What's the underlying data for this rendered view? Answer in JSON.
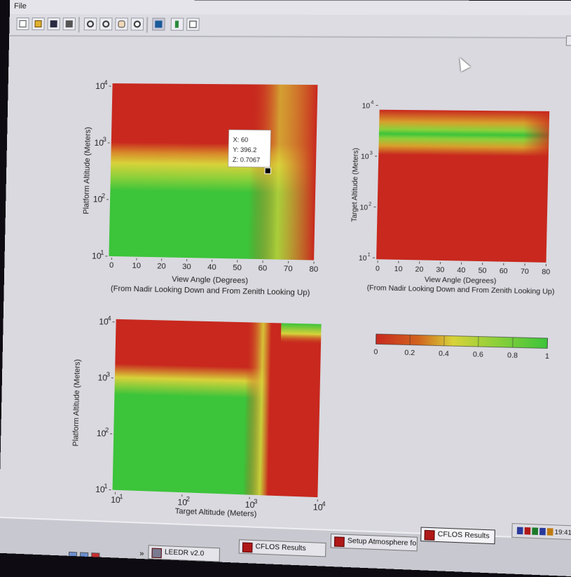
{
  "window": {
    "menu_file": "File"
  },
  "toolbar": {
    "icons": [
      "new-file-icon",
      "open-folder-icon",
      "save-icon",
      "print-icon",
      "zoom-in-icon",
      "zoom-out-icon",
      "pan-hand-icon",
      "reset-view-icon",
      "data-cursor-icon",
      "colorbar-icon",
      "legend-icon"
    ]
  },
  "colors": {
    "red": "#c8281e",
    "yellow": "#d8d23a",
    "green": "#3cc43a",
    "text": "#222222",
    "bg": "#d9d9df"
  },
  "chart_data": [
    {
      "type": "heatmap",
      "id": "plot1",
      "xlabel": "View Angle (Degrees)",
      "xlabel2": "(From Nadir Looking Down and From Zenith Looking Up)",
      "ylabel": "Platform Altitude (Meters)",
      "x_ticks": [
        "0",
        "10",
        "20",
        "30",
        "40",
        "50",
        "60",
        "70",
        "80"
      ],
      "xlim": [
        0,
        80
      ],
      "y_scale": "log",
      "ylim": [
        10,
        10000
      ],
      "y_ticks_base": "10",
      "y_ticks_exp": [
        "1",
        "2",
        "3",
        "4"
      ],
      "description_values": {
        "transition_altitude_m": 1000,
        "rolloff_start_deg": 55
      },
      "tooltip": {
        "x": "X: 60",
        "y": "Y: 396.2",
        "z": "Z: 0.7067"
      }
    },
    {
      "type": "heatmap",
      "id": "plot2",
      "xlabel": "View Angle (Degrees)",
      "xlabel2": "(From Nadir Looking Down and From Zenith Looking Up)",
      "ylabel": "Target Altitude (Meters)",
      "x_ticks": [
        "0",
        "10",
        "20",
        "30",
        "40",
        "50",
        "60",
        "70",
        "80"
      ],
      "xlim": [
        0,
        80
      ],
      "y_scale": "log",
      "ylim": [
        10,
        10000
      ],
      "y_ticks_base": "10",
      "y_ticks_exp": [
        "1",
        "2",
        "3",
        "4"
      ],
      "description_values": {
        "green_band_altitude_m": 2500
      }
    },
    {
      "type": "heatmap",
      "id": "plot3",
      "xlabel": "Target Altitude (Meters)",
      "ylabel": "Platform Altitude (Meters)",
      "x_scale": "log",
      "xlim": [
        10,
        10000
      ],
      "x_ticks_base": "10",
      "x_ticks_exp": [
        "1",
        "2",
        "3",
        "4"
      ],
      "y_scale": "log",
      "ylim": [
        10,
        10000
      ],
      "y_ticks_base": "10",
      "y_ticks_exp": [
        "1",
        "2",
        "3",
        "4"
      ]
    },
    {
      "type": "colorbar",
      "id": "colorbar",
      "range": [
        0,
        1
      ],
      "ticks": [
        "0",
        "0.2",
        "0.4",
        "0.6",
        "0.8",
        "1"
      ]
    }
  ],
  "taskbar": {
    "chevron": "»",
    "tasks": [
      {
        "label": "LEEDR v2.0",
        "active": false
      },
      {
        "label": "CFLOS Results",
        "active": false
      },
      {
        "label": "Setup Atmosphere for H...",
        "active": false
      },
      {
        "label": "CFLOS Results",
        "active": true
      }
    ],
    "clock": "19:41",
    "tray_chevron": "«"
  }
}
